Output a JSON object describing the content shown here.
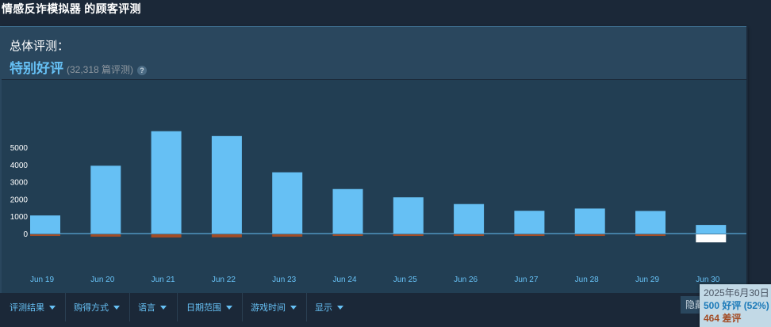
{
  "page": {
    "title": "情感反诈模拟器 的顾客评测"
  },
  "summary": {
    "label": "总体评测：",
    "rating": "特别好评",
    "count": "(32,318 篇评测)",
    "help_icon": "question-icon",
    "help_glyph": "?"
  },
  "chart_data": {
    "type": "bar",
    "categories": [
      "Jun 19",
      "Jun 20",
      "Jun 21",
      "Jun 22",
      "Jun 23",
      "Jun 24",
      "Jun 25",
      "Jun 26",
      "Jun 27",
      "Jun 28",
      "Jun 29",
      "Jun 30"
    ],
    "series": [
      {
        "values": [
          1050,
          3930,
          5930,
          5650,
          3550,
          2580,
          2100,
          1710,
          1320,
          1450,
          1310,
          500
        ],
        "color": "#66c0f4"
      },
      {
        "values": [
          -40,
          -130,
          -180,
          -170,
          -130,
          -90,
          -70,
          -50,
          -40,
          -40,
          -50,
          -464
        ],
        "color": "#a34c25"
      }
    ],
    "y_ticks": [
      0,
      1000,
      2000,
      3000,
      4000,
      5000
    ],
    "ylim": [
      -500,
      6000
    ],
    "highlight_index": 11,
    "highlight_color": "#ffffff",
    "grid": false
  },
  "filters": [
    {
      "label": "评测结果"
    },
    {
      "label": "购得方式"
    },
    {
      "label": "语言"
    },
    {
      "label": "日期范围"
    },
    {
      "label": "游戏时间"
    },
    {
      "label": "显示"
    }
  ],
  "hide_button": {
    "label": "隐藏"
  },
  "tooltip": {
    "date": "2025年6月30日",
    "positive": "500 好评 (52%)",
    "negative": "464 差评"
  }
}
